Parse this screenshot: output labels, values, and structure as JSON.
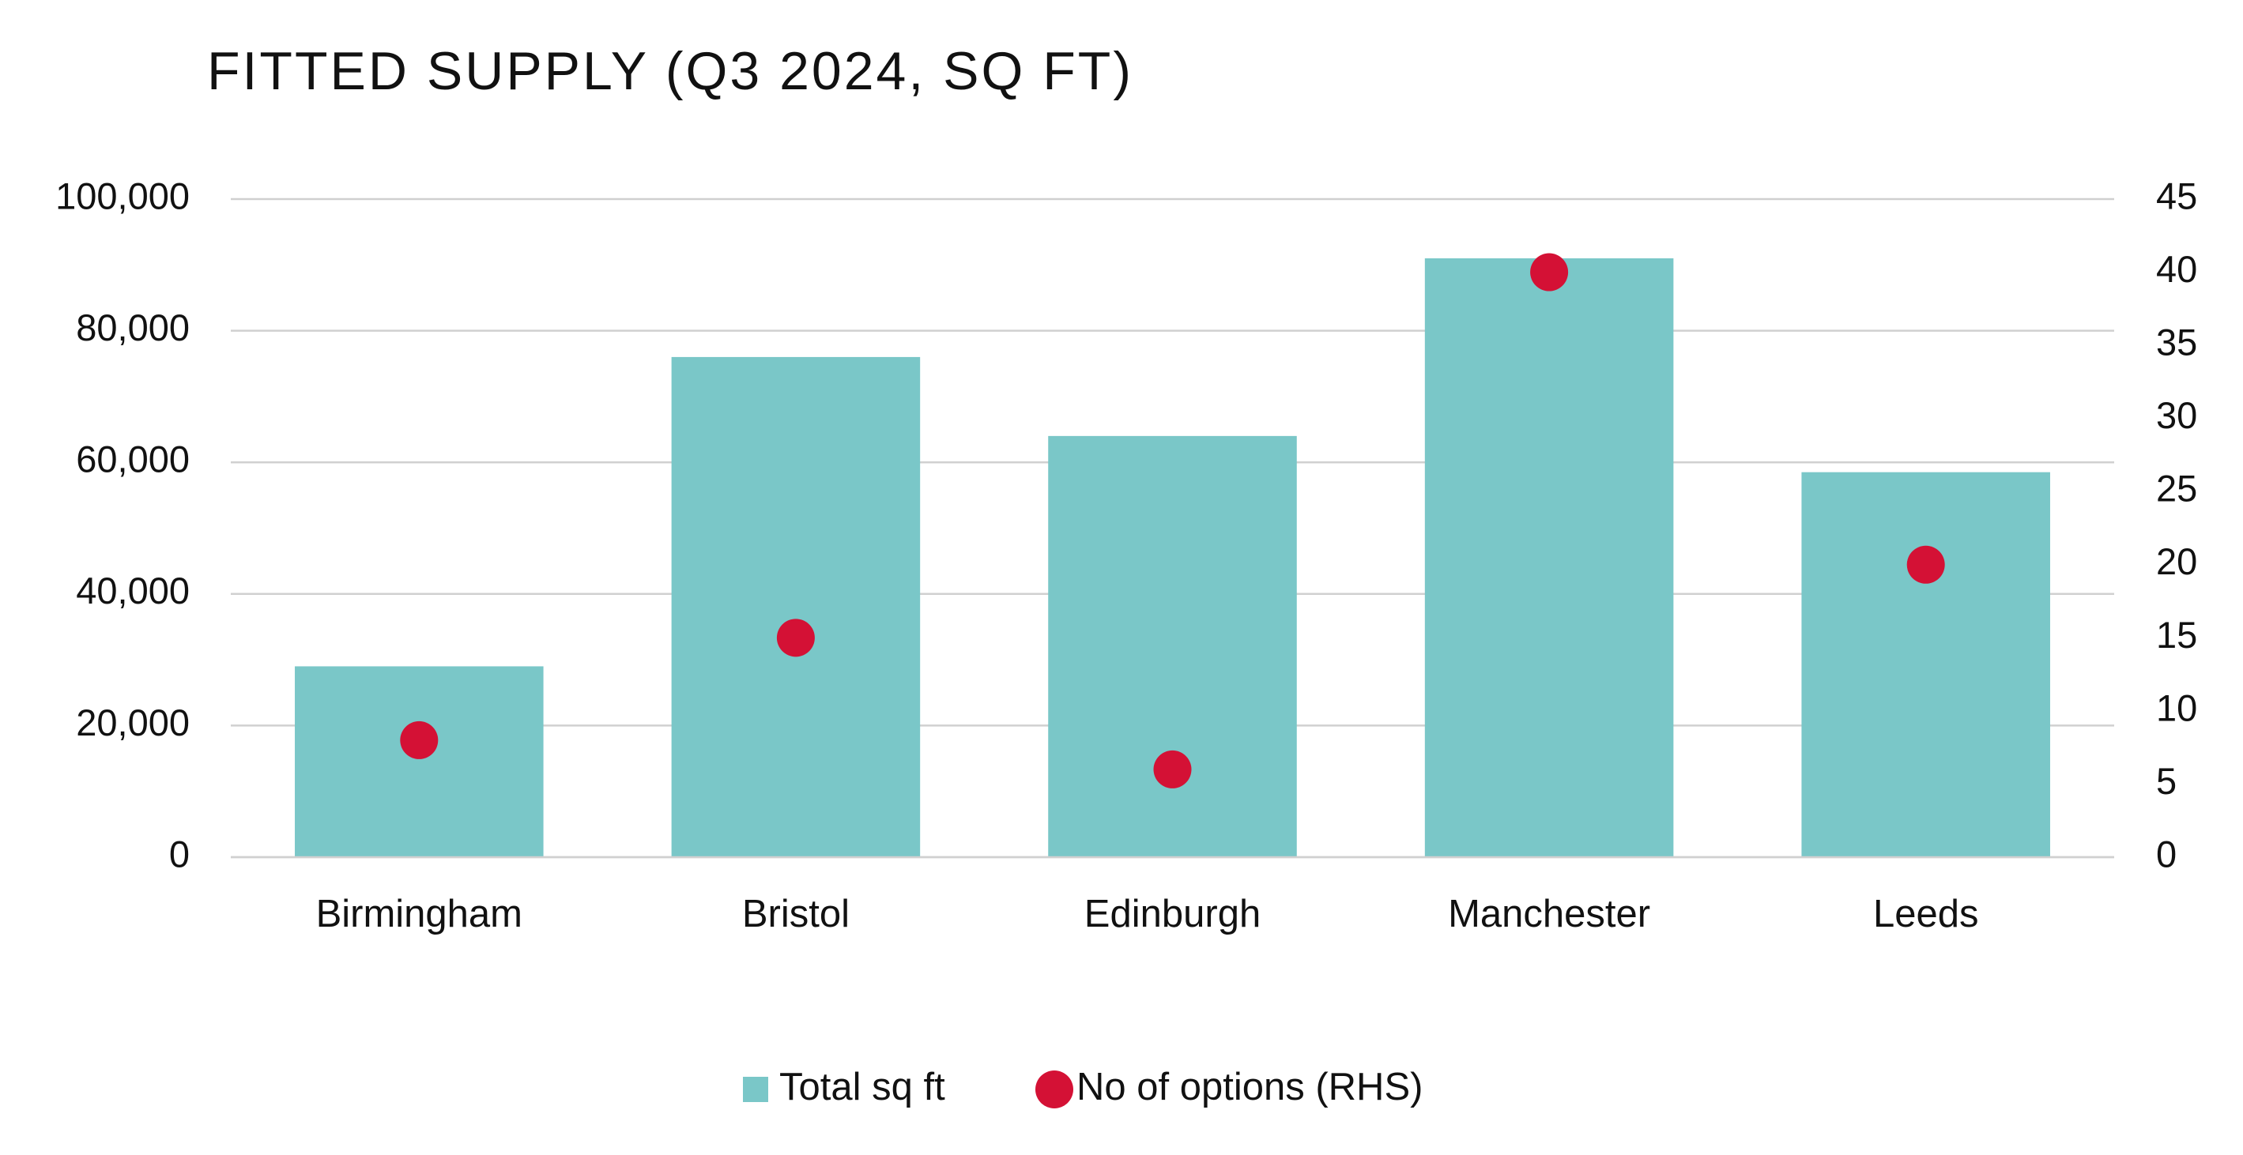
{
  "chart_data": {
    "type": "bar",
    "title": "FITTED SUPPLY (Q3 2024, SQ FT)",
    "categories": [
      "Birmingham",
      "Bristol",
      "Edinburgh",
      "Manchester",
      "Leeds"
    ],
    "series": [
      {
        "name": "Total sq ft",
        "type": "bar",
        "color": "#7ac7c8",
        "values": [
          29000,
          76000,
          64000,
          91000,
          58500
        ]
      },
      {
        "name": "No of options (RHS)",
        "type": "scatter",
        "axis": "y2",
        "color": "#d41135",
        "values": [
          8,
          15,
          6,
          40,
          20
        ]
      }
    ],
    "ylim": [
      0,
      100000
    ],
    "yticks": [
      0,
      {
        "value": 20000,
        "label": "20,000"
      },
      {
        "value": 40000,
        "label": "40,000"
      },
      {
        "value": 60000,
        "label": "60,000"
      },
      {
        "value": 80000,
        "label": "80,000"
      },
      {
        "value": 100000,
        "label": "100,000"
      }
    ],
    "y2lim": [
      0,
      45
    ],
    "y2ticks": [
      0,
      5,
      10,
      15,
      20,
      25,
      30,
      35,
      40,
      45
    ],
    "grid": true,
    "legend": "bottom"
  }
}
